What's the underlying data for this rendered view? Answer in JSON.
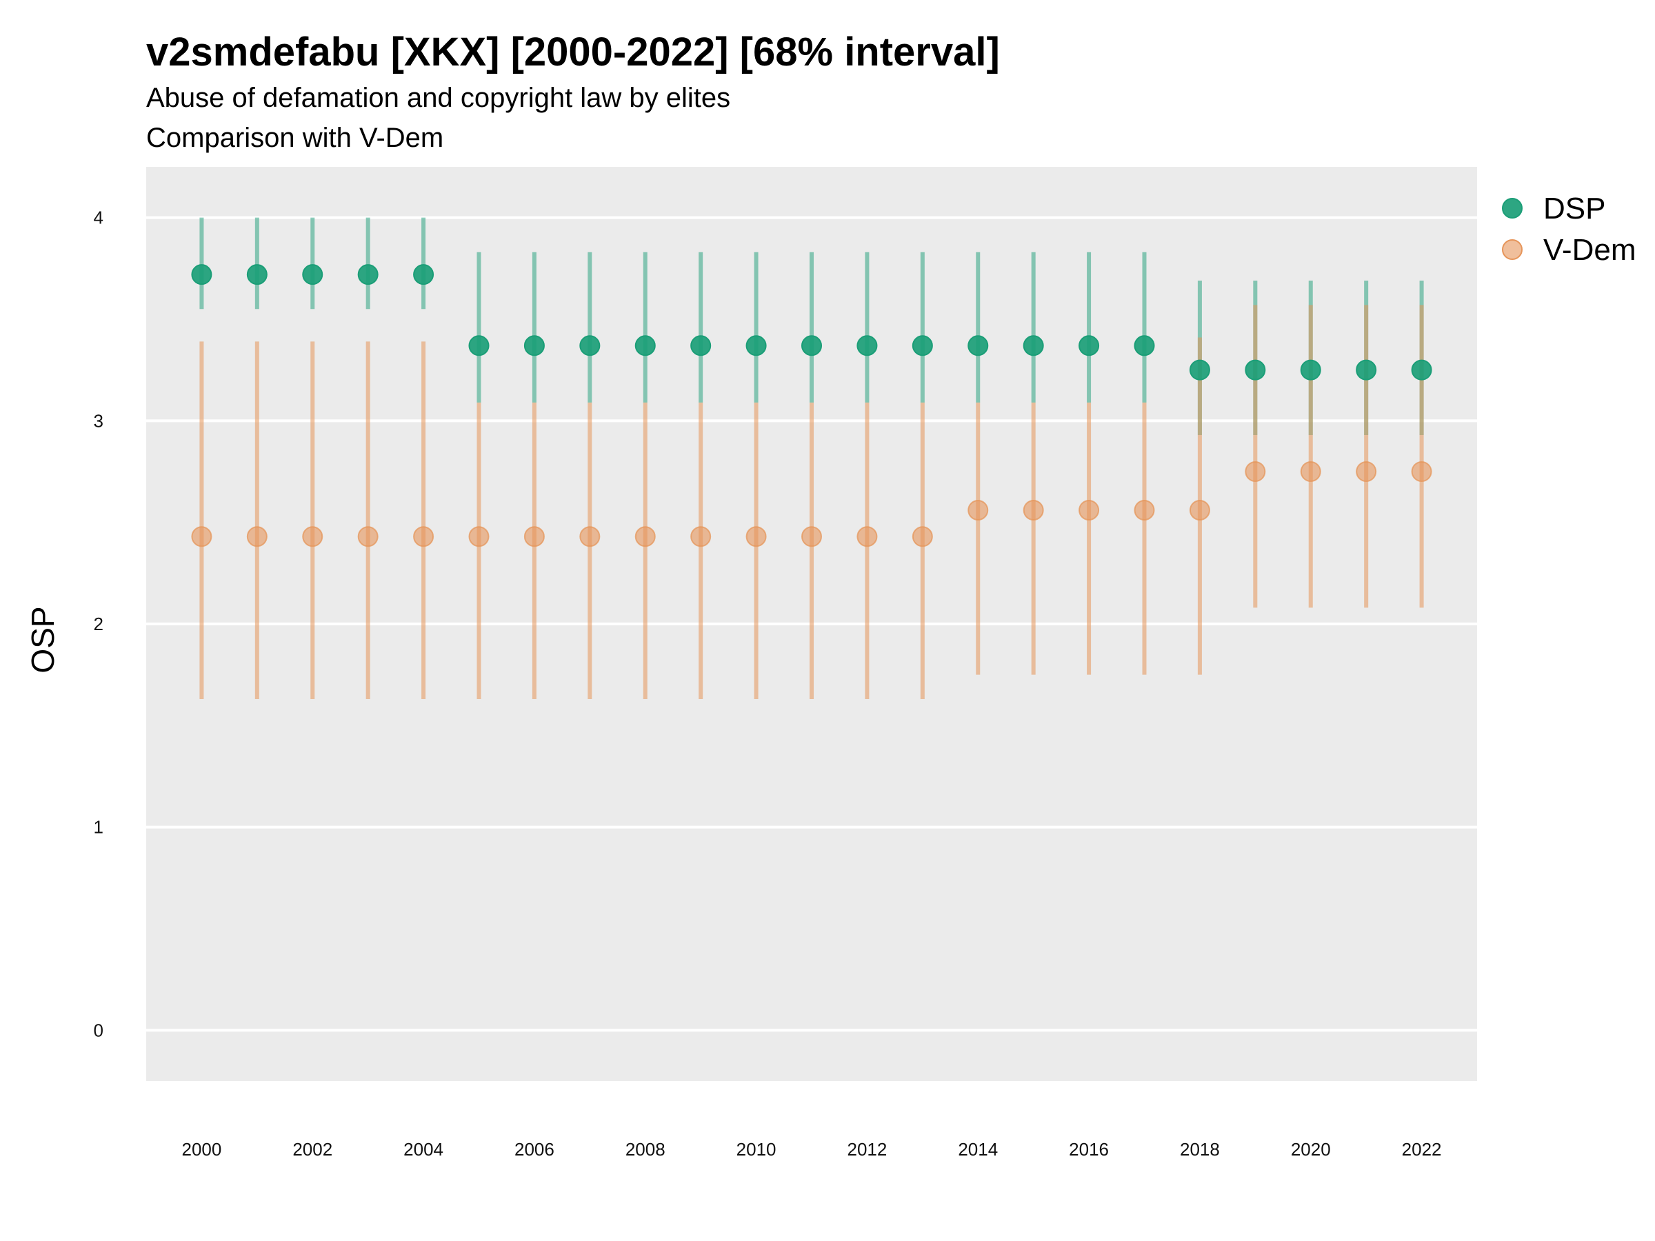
{
  "chart_data": {
    "type": "scatter",
    "title": "v2smdefabu [XKX] [2000-2022] [68% interval]",
    "subtitle": "Abuse of defamation and copyright law by elites",
    "subtitle2": "Comparison with V-Dem",
    "ylabel": "OSP",
    "xlabel": "",
    "ylim": [
      -0.25,
      4.25
    ],
    "xlim": [
      1999.0,
      2023.0
    ],
    "y_ticks": [
      "0",
      "1",
      "2",
      "3",
      "4"
    ],
    "x_ticks": [
      "2000",
      "2002",
      "2004",
      "2006",
      "2008",
      "2010",
      "2012",
      "2014",
      "2016",
      "2018",
      "2020",
      "2022"
    ],
    "grid": true,
    "legend": "right",
    "years": [
      2000,
      2001,
      2002,
      2003,
      2004,
      2005,
      2006,
      2007,
      2008,
      2009,
      2010,
      2011,
      2012,
      2013,
      2014,
      2015,
      2016,
      2017,
      2018,
      2019,
      2020,
      2021,
      2022
    ],
    "series": [
      {
        "name": "DSP",
        "color": "#1b9e77",
        "values": [
          3.72,
          3.72,
          3.72,
          3.72,
          3.72,
          3.37,
          3.37,
          3.37,
          3.37,
          3.37,
          3.37,
          3.37,
          3.37,
          3.37,
          3.37,
          3.37,
          3.37,
          3.37,
          3.25,
          3.25,
          3.25,
          3.25,
          3.25
        ],
        "lower": [
          3.55,
          3.55,
          3.55,
          3.55,
          3.55,
          3.09,
          3.09,
          3.09,
          3.09,
          3.09,
          3.09,
          3.09,
          3.09,
          3.09,
          3.09,
          3.09,
          3.09,
          3.09,
          2.93,
          2.93,
          2.93,
          2.93,
          2.93
        ],
        "upper": [
          4.0,
          4.0,
          4.0,
          4.0,
          4.0,
          3.83,
          3.83,
          3.83,
          3.83,
          3.83,
          3.83,
          3.83,
          3.83,
          3.83,
          3.83,
          3.83,
          3.83,
          3.83,
          3.69,
          3.69,
          3.69,
          3.69,
          3.69
        ]
      },
      {
        "name": "V-Dem",
        "color": "#e6955a",
        "values": [
          2.43,
          2.43,
          2.43,
          2.43,
          2.43,
          2.43,
          2.43,
          2.43,
          2.43,
          2.43,
          2.43,
          2.43,
          2.43,
          2.43,
          2.56,
          2.56,
          2.56,
          2.56,
          2.56,
          2.75,
          2.75,
          2.75,
          2.75
        ],
        "lower": [
          1.63,
          1.63,
          1.63,
          1.63,
          1.63,
          1.63,
          1.63,
          1.63,
          1.63,
          1.63,
          1.63,
          1.63,
          1.63,
          1.63,
          1.75,
          1.75,
          1.75,
          1.75,
          1.75,
          2.08,
          2.08,
          2.08,
          2.08
        ],
        "upper": [
          3.39,
          3.39,
          3.39,
          3.39,
          3.39,
          3.09,
          3.09,
          3.09,
          3.09,
          3.09,
          3.09,
          3.09,
          3.09,
          3.09,
          3.09,
          3.09,
          3.09,
          3.09,
          3.41,
          3.57,
          3.57,
          3.57,
          3.57
        ]
      }
    ]
  }
}
